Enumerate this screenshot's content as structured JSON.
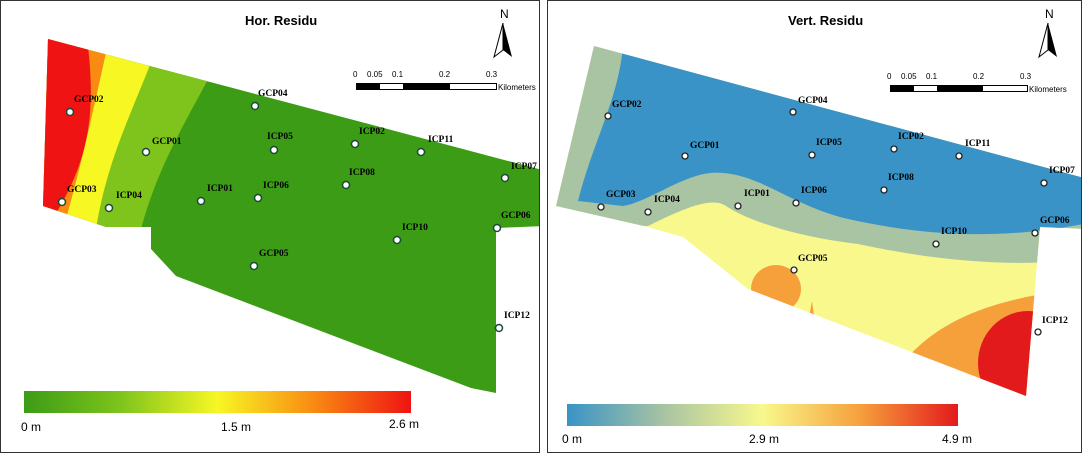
{
  "maps": [
    {
      "title": "Hor. Residu",
      "north": "N",
      "scale": {
        "ticks": [
          "0",
          "0.05",
          "0.1",
          "0.2",
          "0.3"
        ],
        "units": "Kilometers"
      },
      "legend": {
        "min_label": "0 m",
        "mid_label": "1.5 m",
        "max_label": "2.6 m",
        "colors": [
          "#3c9c16",
          "#7ec41c",
          "#f7f724",
          "#f98a12",
          "#ef1313"
        ]
      },
      "points": [
        {
          "label": "GCP02"
        },
        {
          "label": "GCP04"
        },
        {
          "label": "GCP01"
        },
        {
          "label": "ICP05"
        },
        {
          "label": "ICP02"
        },
        {
          "label": "ICP11"
        },
        {
          "label": "ICP07"
        },
        {
          "label": "ICP08"
        },
        {
          "label": "GCP03"
        },
        {
          "label": "ICP04"
        },
        {
          "label": "ICP01"
        },
        {
          "label": "ICP06"
        },
        {
          "label": "GCP06"
        },
        {
          "label": "ICP10"
        },
        {
          "label": "GCP05"
        },
        {
          "label": "ICP12"
        }
      ]
    },
    {
      "title": "Vert. Residu",
      "north": "N",
      "scale": {
        "ticks": [
          "0",
          "0.05",
          "0.1",
          "0.2",
          "0.3"
        ],
        "units": "Kilometers"
      },
      "legend": {
        "min_label": "0 m",
        "mid_label": "2.9 m",
        "max_label": "4.9 m",
        "colors": [
          "#3a93c6",
          "#a9c4a3",
          "#f8f88c",
          "#f6a03c",
          "#e31a1c"
        ]
      },
      "points": [
        {
          "label": "GCP02"
        },
        {
          "label": "GCP04"
        },
        {
          "label": "GCP01"
        },
        {
          "label": "ICP05"
        },
        {
          "label": "ICP02"
        },
        {
          "label": "ICP11"
        },
        {
          "label": "ICP07"
        },
        {
          "label": "ICP08"
        },
        {
          "label": "GCP03"
        },
        {
          "label": "ICP04"
        },
        {
          "label": "ICP01"
        },
        {
          "label": "ICP06"
        },
        {
          "label": "GCP06"
        },
        {
          "label": "ICP10"
        },
        {
          "label": "GCP05"
        },
        {
          "label": "ICP12"
        }
      ]
    }
  ]
}
